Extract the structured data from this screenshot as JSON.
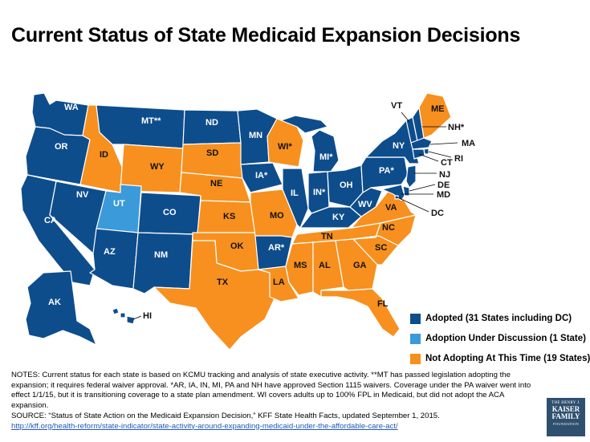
{
  "title": "Current Status of State Medicaid Expansion Decisions",
  "colors": {
    "adopted": "#0e4d8c",
    "discussion": "#3b9ad9",
    "not_adopting": "#f7901e"
  },
  "legend": [
    {
      "key": "adopted",
      "label": "Adopted (31 States including DC)"
    },
    {
      "key": "discussion",
      "label": "Adoption Under Discussion (1 State)"
    },
    {
      "key": "not_adopting",
      "label": "Not Adopting At This Time (19 States)"
    }
  ],
  "states": {
    "WA": {
      "label": "WA",
      "status": "adopted"
    },
    "OR": {
      "label": "OR",
      "status": "adopted"
    },
    "CA": {
      "label": "CA",
      "status": "adopted"
    },
    "NV": {
      "label": "NV",
      "status": "adopted"
    },
    "ID": {
      "label": "ID",
      "status": "not_adopting"
    },
    "MT": {
      "label": "MT**",
      "status": "adopted"
    },
    "WY": {
      "label": "WY",
      "status": "not_adopting"
    },
    "UT": {
      "label": "UT",
      "status": "discussion"
    },
    "CO": {
      "label": "CO",
      "status": "adopted"
    },
    "AZ": {
      "label": "AZ",
      "status": "adopted"
    },
    "NM": {
      "label": "NM",
      "status": "adopted"
    },
    "ND": {
      "label": "ND",
      "status": "adopted"
    },
    "SD": {
      "label": "SD",
      "status": "not_adopting"
    },
    "NE": {
      "label": "NE",
      "status": "not_adopting"
    },
    "KS": {
      "label": "KS",
      "status": "not_adopting"
    },
    "OK": {
      "label": "OK",
      "status": "not_adopting"
    },
    "TX": {
      "label": "TX",
      "status": "not_adopting"
    },
    "MN": {
      "label": "MN",
      "status": "adopted"
    },
    "IA": {
      "label": "IA*",
      "status": "adopted"
    },
    "MO": {
      "label": "MO",
      "status": "not_adopting"
    },
    "AR": {
      "label": "AR*",
      "status": "adopted"
    },
    "LA": {
      "label": "LA",
      "status": "not_adopting"
    },
    "WI": {
      "label": "WI*",
      "status": "not_adopting"
    },
    "IL": {
      "label": "IL",
      "status": "adopted"
    },
    "MI": {
      "label": "MI*",
      "status": "adopted"
    },
    "IN": {
      "label": "IN*",
      "status": "adopted"
    },
    "OH": {
      "label": "OH",
      "status": "adopted"
    },
    "KY": {
      "label": "KY",
      "status": "adopted"
    },
    "TN": {
      "label": "TN",
      "status": "not_adopting"
    },
    "MS": {
      "label": "MS",
      "status": "not_adopting"
    },
    "AL": {
      "label": "AL",
      "status": "not_adopting"
    },
    "GA": {
      "label": "GA",
      "status": "not_adopting"
    },
    "FL": {
      "label": "FL",
      "status": "not_adopting"
    },
    "SC": {
      "label": "SC",
      "status": "not_adopting"
    },
    "NC": {
      "label": "NC",
      "status": "not_adopting"
    },
    "VA": {
      "label": "VA",
      "status": "not_adopting"
    },
    "WV": {
      "label": "WV",
      "status": "adopted"
    },
    "PA": {
      "label": "PA*",
      "status": "adopted"
    },
    "NY": {
      "label": "NY",
      "status": "adopted"
    },
    "VT": {
      "label": "VT",
      "status": "adopted"
    },
    "NH": {
      "label": "NH*",
      "status": "adopted"
    },
    "ME": {
      "label": "ME",
      "status": "not_adopting"
    },
    "MA": {
      "label": "MA",
      "status": "adopted"
    },
    "RI": {
      "label": "RI",
      "status": "adopted"
    },
    "CT": {
      "label": "CT",
      "status": "adopted"
    },
    "NJ": {
      "label": "NJ",
      "status": "adopted"
    },
    "DE": {
      "label": "DE",
      "status": "adopted"
    },
    "MD": {
      "label": "MD",
      "status": "adopted"
    },
    "DC": {
      "label": "DC",
      "status": "adopted"
    },
    "AK": {
      "label": "AK",
      "status": "adopted"
    },
    "HI": {
      "label": "HI",
      "status": "adopted"
    }
  },
  "notes": {
    "text": "NOTES: Current status for each state is based on KCMU tracking and analysis of state executive activity. **MT has passed legislation adopting the expansion; it requires federal waiver approval. *AR, IA, IN, MI, PA and NH have approved Section 1115 waivers. Coverage under the PA waiver went into effect 1/1/15, but it is transitioning coverage to a state plan amendment. WI covers adults up to 100% FPL in Medicaid, but did not adopt the ACA expansion.",
    "source": "SOURCE: “Status of State Action on the Medicaid Expansion Decision,” KFF State Health Facts, updated September 1, 2015.",
    "link": "http://kff.org/health-reform/state-indicator/state-activity-around-expanding-medicaid-under-the-affordable-care-act/"
  },
  "logo": {
    "line1": "THE HENRY J.",
    "line2": "KAISER",
    "line3": "FAMILY",
    "line4": "FOUNDATION"
  }
}
